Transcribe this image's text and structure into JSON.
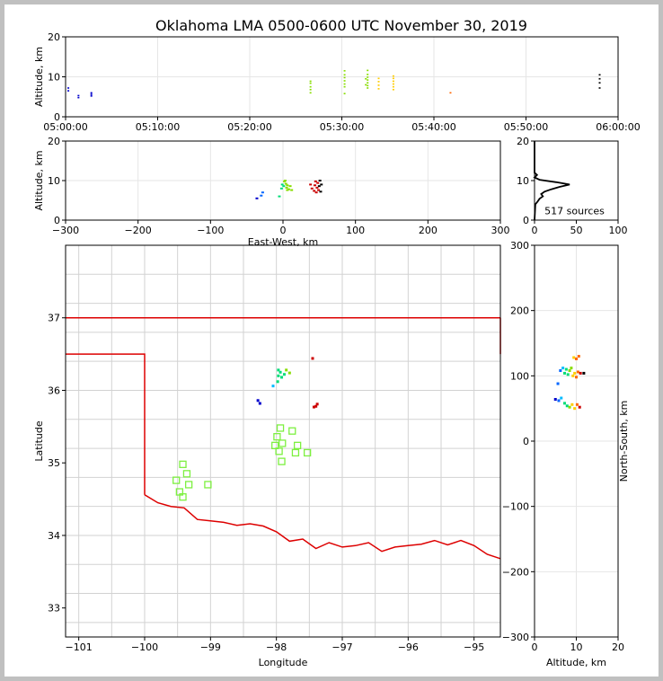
{
  "title": "Oklahoma LMA 0500-0600 UTC November 30, 2019",
  "chart_data": [
    {
      "type": "scatter",
      "panel": "time-altitude",
      "ylabel": "Altitude, km",
      "xlim": [
        "05:00:00",
        "06:00:00"
      ],
      "ylim": [
        0,
        20
      ],
      "xticks": [
        "05:00:00",
        "05:10:00",
        "05:20:00",
        "05:30:00",
        "05:40:00",
        "05:50:00",
        "06:00:00"
      ],
      "yticks": [
        "0",
        "10",
        "20"
      ],
      "grid": true,
      "points_time_min": [
        [
          0.3,
          6.5
        ],
        [
          0.3,
          7.2
        ],
        [
          1.4,
          4.8
        ],
        [
          1.4,
          5.3
        ],
        [
          2.8,
          5.2
        ],
        [
          2.8,
          6.0
        ],
        [
          2.8,
          5.6
        ],
        [
          26.6,
          6.0
        ],
        [
          26.6,
          6.8
        ],
        [
          26.6,
          7.5
        ],
        [
          26.6,
          8.4
        ],
        [
          26.6,
          8.9
        ],
        [
          30.3,
          5.8
        ],
        [
          30.3,
          7.5
        ],
        [
          30.3,
          8.2
        ],
        [
          30.3,
          9.0
        ],
        [
          30.3,
          9.8
        ],
        [
          30.3,
          10.5
        ],
        [
          30.3,
          11.5
        ],
        [
          32.8,
          7.2
        ],
        [
          32.8,
          7.8
        ],
        [
          32.8,
          8.5
        ],
        [
          32.8,
          9.2
        ],
        [
          32.8,
          9.9
        ],
        [
          32.8,
          10.6
        ],
        [
          32.8,
          11.6
        ],
        [
          32.6,
          8.0
        ],
        [
          32.6,
          9.5
        ],
        [
          34.0,
          7.0
        ],
        [
          34.0,
          7.9
        ],
        [
          34.0,
          8.8
        ],
        [
          34.0,
          9.6
        ],
        [
          35.6,
          6.8
        ],
        [
          35.6,
          7.5
        ],
        [
          35.6,
          8.2
        ],
        [
          35.6,
          8.9
        ],
        [
          35.6,
          9.6
        ],
        [
          35.6,
          10.2
        ],
        [
          41.8,
          6.0
        ],
        [
          58.0,
          7.2
        ],
        [
          58.0,
          8.5
        ],
        [
          58.0,
          9.5
        ],
        [
          58.0,
          10.5
        ]
      ]
    },
    {
      "type": "scatter",
      "panel": "east-west-altitude",
      "xlabel": "East-West, km",
      "ylabel": "Altitude, km",
      "xlim": [
        -300,
        300
      ],
      "ylim": [
        0,
        20
      ],
      "xticks": [
        "−300",
        "−200",
        "−100",
        "0",
        "100",
        "200",
        "300"
      ],
      "yticks": [
        "0",
        "10",
        "20"
      ],
      "grid": true,
      "points": [
        [
          -36,
          5.5
        ],
        [
          -30,
          6.2
        ],
        [
          -28,
          7.0
        ],
        [
          -5,
          6.0
        ],
        [
          -2,
          8.0
        ],
        [
          -1,
          9.0
        ],
        [
          1,
          8.6
        ],
        [
          2,
          9.8
        ],
        [
          3,
          10.0
        ],
        [
          4,
          9.2
        ],
        [
          5,
          8.2
        ],
        [
          6,
          7.6
        ],
        [
          6,
          8.8
        ],
        [
          8,
          7.8
        ],
        [
          10,
          8.6
        ],
        [
          12,
          7.6
        ],
        [
          38,
          9.0
        ],
        [
          40,
          8.0
        ],
        [
          43,
          7.4
        ],
        [
          44,
          8.8
        ],
        [
          45,
          9.8
        ],
        [
          46,
          7.0
        ],
        [
          47,
          8.2
        ],
        [
          48,
          9.4
        ],
        [
          49,
          7.6
        ],
        [
          50,
          8.6
        ],
        [
          51,
          10.0
        ],
        [
          52,
          7.2
        ],
        [
          53,
          9.0
        ]
      ]
    },
    {
      "type": "histogram",
      "panel": "altitude-histogram",
      "annotation": "517 sources",
      "xlim": [
        0,
        100
      ],
      "ylim": [
        0,
        20
      ],
      "xticks": [
        "0",
        "50",
        "100"
      ],
      "yticks": [
        "0",
        "10",
        "20"
      ],
      "profile": [
        [
          0,
          0
        ],
        [
          1,
          4.0
        ],
        [
          4,
          4.8
        ],
        [
          6,
          5.4
        ],
        [
          10,
          6.0
        ],
        [
          8,
          6.6
        ],
        [
          12,
          7.2
        ],
        [
          20,
          7.8
        ],
        [
          30,
          8.4
        ],
        [
          42,
          9.0
        ],
        [
          26,
          9.6
        ],
        [
          6,
          10.2
        ],
        [
          0,
          10.8
        ],
        [
          3,
          11.4
        ],
        [
          0,
          12.0
        ],
        [
          0,
          20
        ]
      ]
    },
    {
      "type": "map",
      "panel": "plan-view",
      "xlabel": "Longitude",
      "ylabel": "Latitude",
      "xlim": [
        -101.2,
        -94.6
      ],
      "ylim": [
        32.6,
        38.0
      ],
      "xticks": [
        "−101",
        "−100",
        "−99",
        "−98",
        "−97",
        "−96",
        "−95"
      ],
      "yticks": [
        "33",
        "34",
        "35",
        "36",
        "37"
      ],
      "stations": [
        [
          -97.94,
          35.48
        ],
        [
          -97.99,
          35.36
        ],
        [
          -97.91,
          35.27
        ],
        [
          -98.02,
          35.24
        ],
        [
          -97.96,
          35.16
        ],
        [
          -97.92,
          35.02
        ],
        [
          -97.76,
          35.44
        ],
        [
          -97.68,
          35.24
        ],
        [
          -97.71,
          35.14
        ],
        [
          -97.53,
          35.14
        ],
        [
          -99.42,
          34.98
        ],
        [
          -99.36,
          34.85
        ],
        [
          -99.52,
          34.76
        ],
        [
          -99.33,
          34.7
        ],
        [
          -99.04,
          34.7
        ],
        [
          -99.47,
          34.6
        ],
        [
          -99.42,
          34.53
        ]
      ],
      "sources": [
        [
          -98.28,
          35.86
        ],
        [
          -98.25,
          35.82
        ],
        [
          -98.05,
          36.06
        ],
        [
          -97.98,
          36.12
        ],
        [
          -97.97,
          36.2
        ],
        [
          -97.94,
          36.25
        ],
        [
          -97.92,
          36.18
        ],
        [
          -97.88,
          36.22
        ],
        [
          -97.85,
          36.28
        ],
        [
          -97.8,
          36.24
        ],
        [
          -97.97,
          36.28
        ],
        [
          -97.45,
          36.44
        ],
        [
          -97.43,
          35.77
        ],
        [
          -97.4,
          35.78
        ],
        [
          -97.38,
          35.81
        ]
      ]
    },
    {
      "type": "scatter",
      "panel": "altitude-north-south",
      "xlabel": "Altitude, km",
      "ylabel": "North-South, km",
      "xlim": [
        0,
        20
      ],
      "ylim": [
        -300,
        300
      ],
      "xticks": [
        "0",
        "10",
        "20"
      ],
      "yticks": [
        "−300",
        "−200",
        "−100",
        "0",
        "100",
        "200",
        "300"
      ],
      "grid": true,
      "points": [
        [
          5.6,
          88
        ],
        [
          6.2,
          108
        ],
        [
          6.8,
          112
        ],
        [
          7.2,
          104
        ],
        [
          7.6,
          110
        ],
        [
          8.0,
          102
        ],
        [
          8.4,
          108
        ],
        [
          8.8,
          112
        ],
        [
          9.2,
          100
        ],
        [
          9.6,
          104
        ],
        [
          10.0,
          98
        ],
        [
          10.4,
          106
        ],
        [
          11.0,
          104
        ],
        [
          11.8,
          104
        ],
        [
          9.4,
          128
        ],
        [
          10.0,
          126
        ],
        [
          10.6,
          130
        ],
        [
          5.0,
          64
        ],
        [
          5.8,
          62
        ],
        [
          6.4,
          66
        ],
        [
          7.2,
          58
        ],
        [
          7.8,
          54
        ],
        [
          8.4,
          52
        ],
        [
          9.0,
          56
        ],
        [
          9.6,
          50
        ],
        [
          10.2,
          56
        ],
        [
          10.8,
          52
        ]
      ]
    }
  ]
}
